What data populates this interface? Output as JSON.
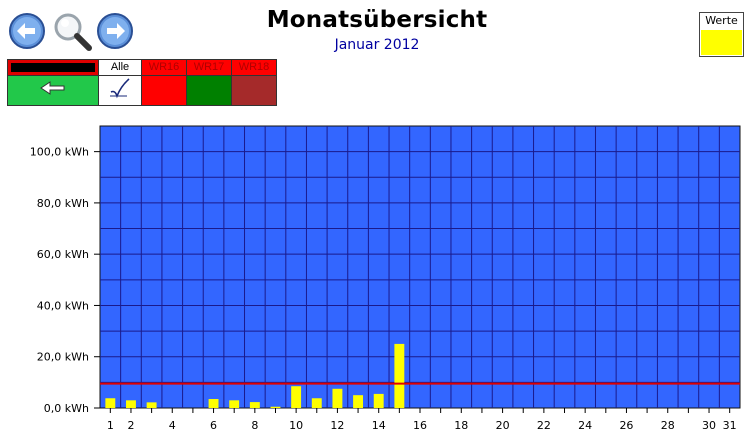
{
  "header": {
    "title": "Monatsübersicht",
    "subtitle": "Januar 2012"
  },
  "legend": {
    "label": "Werte",
    "color": "#ffff00"
  },
  "selector": {
    "all_label": "Alle",
    "inverters": [
      {
        "name": "WR16",
        "color": "#ff0000"
      },
      {
        "name": "WR17",
        "color": "#008000"
      },
      {
        "name": "WR18",
        "color": "#a52a2a"
      }
    ]
  },
  "nav": {
    "back_icon": "arrow-left-icon",
    "zoom_icon": "magnifier-icon",
    "forward_icon": "arrow-right-icon"
  },
  "chart_data": {
    "type": "bar",
    "x": [
      1,
      2,
      3,
      4,
      5,
      6,
      7,
      8,
      9,
      10,
      11,
      12,
      13,
      14,
      15,
      16,
      17,
      18,
      19,
      20,
      21,
      22,
      23,
      24,
      25,
      26,
      27,
      28,
      29,
      30,
      31
    ],
    "x_tick_labels": [
      "1",
      "2",
      "4",
      "6",
      "8",
      "10",
      "12",
      "14",
      "16",
      "18",
      "20",
      "22",
      "24",
      "26",
      "28",
      "30",
      "31"
    ],
    "x_tick_days": [
      1,
      2,
      4,
      6,
      8,
      10,
      12,
      14,
      16,
      18,
      20,
      22,
      24,
      26,
      28,
      30,
      31
    ],
    "values": [
      3.8,
      3.0,
      2.2,
      0,
      0,
      3.5,
      3.0,
      2.3,
      0.5,
      8.5,
      3.8,
      7.5,
      5.0,
      5.5,
      25.0,
      0,
      0,
      0,
      0,
      0,
      0,
      0,
      0,
      0,
      0,
      0,
      0,
      0,
      0,
      0,
      0
    ],
    "y_tick_labels": [
      "0,0 kWh",
      "20,0 kWh",
      "40,0 kWh",
      "60,0 kWh",
      "80,0 kWh",
      "100,0 kWh"
    ],
    "y_ticks": [
      0,
      20,
      40,
      60,
      80,
      100
    ],
    "ylim": [
      0,
      110
    ],
    "reference_line": 9.5,
    "colors": {
      "plot_bg": "#3366ff",
      "grid": "#1a1a8c",
      "bar": "#ffff00",
      "reference": "#e00000"
    }
  }
}
